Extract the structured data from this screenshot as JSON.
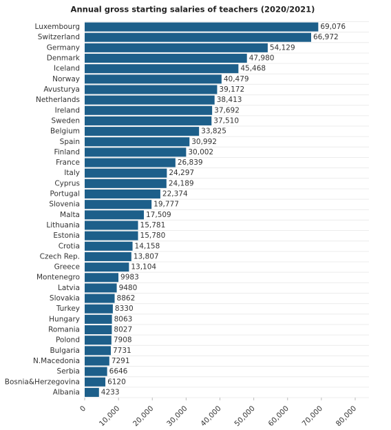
{
  "chart_data": {
    "type": "hbar",
    "title": "Annual gross starting salaries of teachers (2020/2021)",
    "categories": [
      "Luxembourg",
      "Switzerland",
      "Germany",
      "Denmark",
      "Iceland",
      "Norway",
      "Avusturya",
      "Netherlands",
      "Ireland",
      "Sweden",
      "Belgium",
      "Spain",
      "Finland",
      "France",
      "Italy",
      "Cyprus",
      "Portugal",
      "Slovenia",
      "Malta",
      "Lithuania",
      "Estonia",
      "Crotia",
      "Czech Rep.",
      "Greece",
      "Montenegro",
      "Latvia",
      "Slovakia",
      "Turkey",
      "Hungary",
      "Romania",
      "Polond",
      "Bulgaria",
      "N.Macedonia",
      "Serbia",
      "Bosnia&Herzegovina",
      "Albania"
    ],
    "values": [
      69076,
      66972,
      54129,
      47980,
      45468,
      40479,
      39172,
      38413,
      37692,
      37510,
      33825,
      30992,
      30002,
      26839,
      24297,
      24189,
      22374,
      19777,
      17509,
      15781,
      15780,
      14158,
      13807,
      13104,
      9983,
      9480,
      8862,
      8330,
      8063,
      8027,
      7908,
      7731,
      7291,
      6646,
      6120,
      4233
    ],
    "value_labels": [
      "69,076",
      "66,972",
      "54,129",
      "47,980",
      "45,468",
      "40,479",
      "39,172",
      "38,413",
      "37,692",
      "37,510",
      "33,825",
      "30,992",
      "30,002",
      "26,839",
      "24,297",
      "24,189",
      "22,374",
      "19,777",
      "17,509",
      "15,781",
      "15,780",
      "14,158",
      "13,807",
      "13,104",
      "9983",
      "9480",
      "8862",
      "8330",
      "8063",
      "8027",
      "7908",
      "7731",
      "7291",
      "6646",
      "6120",
      "4233"
    ],
    "color": "#1d5f8a",
    "xlim": [
      0,
      80000
    ],
    "xticks": [
      0,
      {
        "value": 10000,
        "label": "10,000"
      },
      {
        "value": 20000,
        "label": "20,000"
      },
      {
        "value": 30000,
        "label": "30,000"
      },
      {
        "value": 40000,
        "label": "40,000"
      },
      {
        "value": 50000,
        "label": "50,000"
      },
      {
        "value": 60000,
        "label": "60,000"
      },
      {
        "value": 70000,
        "label": "70,000"
      },
      {
        "value": 80000,
        "label": "80,000"
      }
    ]
  }
}
